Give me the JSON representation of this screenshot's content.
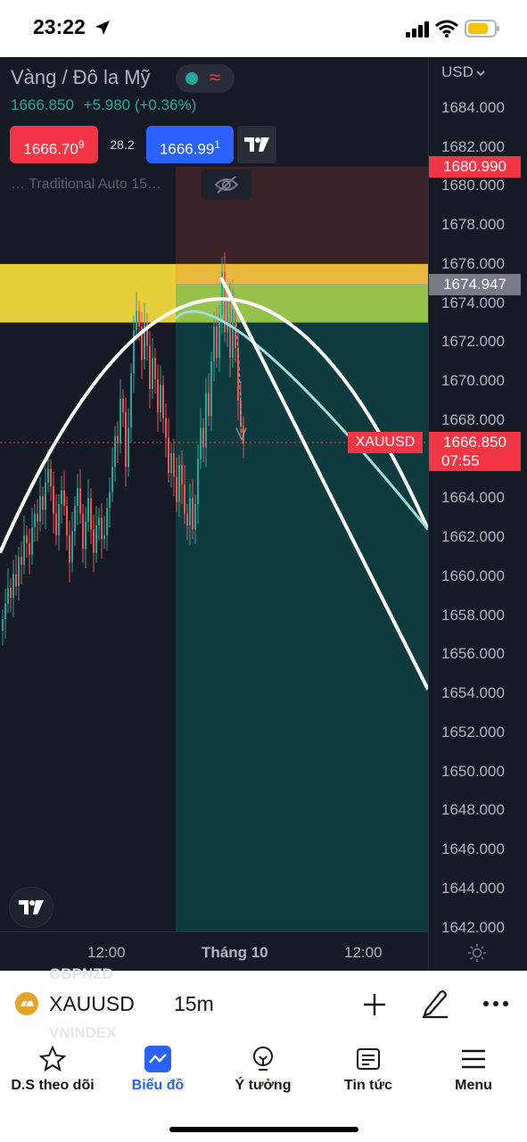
{
  "status": {
    "time": "23:22"
  },
  "header": {
    "title": "Vàng / Đô la Mỹ",
    "price": "1666.850",
    "change": "+5.980 (+0.36%)"
  },
  "trade": {
    "sell_main": "1666.70",
    "sell_sup": "9",
    "spread": "28.2",
    "buy_main": "1666.99",
    "buy_sup": "1"
  },
  "indicator": {
    "label": "… Traditional Auto 15…"
  },
  "currency": "USD",
  "colors": {
    "background": "#161a25",
    "bull": "#26a69a",
    "bear": "#ef5350",
    "yellow_zone": "#e5cf3a",
    "stop_zone": "#3b2226",
    "target_zone": "#0e3b3d",
    "curve": "#ffffff"
  },
  "chart_data": {
    "type": "candlestick",
    "symbol": "XAUUSD",
    "interval": "15m",
    "y_ticks": [
      "1684.000",
      "1682.000",
      "1680.000",
      "1678.000",
      "1676.000",
      "1674.000",
      "1672.000",
      "1670.000",
      "1668.000",
      "1666.000",
      "1664.000",
      "1662.000",
      "1660.000",
      "1658.000",
      "1656.000",
      "1654.000",
      "1652.000",
      "1650.000",
      "1648.000",
      "1646.000",
      "1644.000",
      "1642.000"
    ],
    "ylim": [
      1641.8,
      1686.6
    ],
    "x_ticks": [
      {
        "label": "12:00",
        "index": 40
      },
      {
        "label": "Tháng 10",
        "index": 88
      },
      {
        "label": "12:00",
        "index": 136
      }
    ],
    "price_labels": {
      "stop": {
        "text": "1680.990",
        "value": 1680.99
      },
      "entry": {
        "text": "1674.947",
        "value": 1674.947
      },
      "last_symbol": "XAUUSD",
      "last": {
        "text": "1666.850",
        "value": 1666.85
      },
      "countdown": "07:55"
    },
    "zones": {
      "yellow": [
        1673.0,
        1676.0
      ],
      "stop": [
        1674.9,
        1681.0
      ],
      "target": [
        1641.8,
        1674.9
      ],
      "green_band": [
        1673.0,
        1674.9
      ],
      "orange_band": [
        1674.9,
        1676.0
      ]
    },
    "position_start_index": 65,
    "closes": [
      1657.8,
      1658.6,
      1659.4,
      1658.9,
      1660.1,
      1659.5,
      1661.0,
      1660.6,
      1662.1,
      1661.7,
      1661.1,
      1662.5,
      1663.2,
      1662.8,
      1664.1,
      1663.4,
      1664.8,
      1665.5,
      1664.6,
      1663.2,
      1662.1,
      1663.7,
      1664.4,
      1663.6,
      1662.1,
      1660.7,
      1662.3,
      1663.6,
      1664.5,
      1663.2,
      1661.4,
      1662.8,
      1664.0,
      1662.4,
      1661.2,
      1662.6,
      1663.0,
      1661.9,
      1662.1,
      1663.5,
      1664.3,
      1665.6,
      1667.2,
      1666.8,
      1669.1,
      1668.4,
      1665.6,
      1667.6,
      1670.4,
      1672.6,
      1673.6,
      1672.8,
      1671.1,
      1673.0,
      1671.8,
      1669.6,
      1671.2,
      1670.1,
      1668.4,
      1669.8,
      1668.1,
      1667.1,
      1665.3,
      1666.3,
      1665.1,
      1663.8,
      1665.7,
      1664.7,
      1663.2,
      1662.6,
      1664.0,
      1662.4,
      1663.7,
      1666.0,
      1667.6,
      1666.6,
      1669.4,
      1668.2,
      1671.0,
      1672.8,
      1671.2,
      1673.4,
      1675.6,
      1672.5,
      1674.3,
      1671.2,
      1673.7,
      1671.7,
      1669.0,
      1667.7,
      1666.8
    ]
  },
  "tabs": {
    "watchlist": "D.S theo dõi",
    "chart": "Biểu đồ",
    "ideas": "Ý tưởng",
    "news": "Tin tức",
    "menu": "Menu"
  },
  "ghost_text": {
    "top": "GBPNZD",
    "bottom": "VNINDEX"
  }
}
